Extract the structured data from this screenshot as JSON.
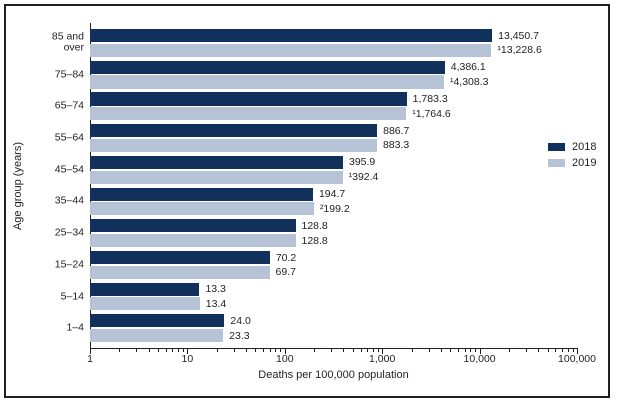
{
  "colors": {
    "frame": "#1f1f1f",
    "axis": "#1f1f1f",
    "text": "#1f1f1f",
    "series_2018": "#12305c",
    "series_2019": "#b6c3d6"
  },
  "chart_data": {
    "type": "bar",
    "orientation": "horizontal",
    "x_scale": "log",
    "title": "",
    "xlabel": "Deaths per 100,000 population",
    "ylabel": "Age group (years)",
    "xlim": [
      1,
      100000
    ],
    "grid": false,
    "legend_position": "right",
    "x_major_ticks": [
      {
        "value": 1,
        "label": "1"
      },
      {
        "value": 10,
        "label": "10"
      },
      {
        "value": 100,
        "label": "100"
      },
      {
        "value": 1000,
        "label": "1,000"
      },
      {
        "value": 10000,
        "label": "10,000"
      },
      {
        "value": 100000,
        "label": "100,000"
      }
    ],
    "categories": [
      {
        "label": "85 and over",
        "lines": [
          "85 and",
          "over"
        ]
      },
      {
        "label": "75–84",
        "lines": [
          "75–84"
        ]
      },
      {
        "label": "65–74",
        "lines": [
          "65–74"
        ]
      },
      {
        "label": "55–64",
        "lines": [
          "55–64"
        ]
      },
      {
        "label": "45–54",
        "lines": [
          "45–54"
        ]
      },
      {
        "label": "35–44",
        "lines": [
          "35–44"
        ]
      },
      {
        "label": "25–34",
        "lines": [
          "25–34"
        ]
      },
      {
        "label": "15–24",
        "lines": [
          "15–24"
        ]
      },
      {
        "label": "5–14",
        "lines": [
          "5–14"
        ]
      },
      {
        "label": "1–4",
        "lines": [
          "1–4"
        ]
      }
    ],
    "series": [
      {
        "name": "2018",
        "color": "#12305c",
        "values": [
          13450.7,
          4386.1,
          1783.3,
          886.7,
          395.9,
          194.7,
          128.8,
          70.2,
          13.3,
          24.0
        ],
        "value_labels": [
          "13,450.7",
          "4,386.1",
          "1,783.3",
          "886.7",
          "395.9",
          "194.7",
          "128.8",
          "70.2",
          "13.3",
          "24.0"
        ]
      },
      {
        "name": "2019",
        "color": "#b6c3d6",
        "values": [
          13228.6,
          4308.3,
          1764.6,
          883.3,
          392.4,
          199.2,
          128.8,
          69.7,
          13.4,
          23.3
        ],
        "value_labels": [
          "¹13,228.6",
          "¹4,308.3",
          "¹1,764.6",
          "883.3",
          "¹392.4",
          "²199.2",
          "128.8",
          "69.7",
          "13.4",
          "23.3"
        ]
      }
    ]
  }
}
